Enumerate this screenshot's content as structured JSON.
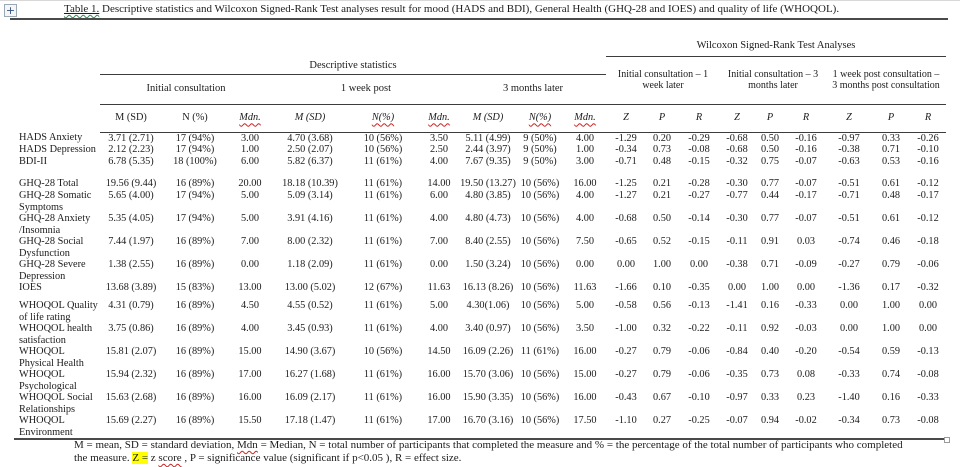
{
  "caption": {
    "number": "Table 1.",
    "text": " Descriptive statistics and Wilcoxon Signed-Rank Test analyses result for mood (HADS and BDI), General Health (GHQ-28 and IOES) and quality of life (WHOQOL)."
  },
  "icons": {
    "table_move_glyph": "+",
    "table_move_name": "four-arrow move handle",
    "resize_handle_name": "table resize square"
  },
  "colors": {
    "highlight": "#ffff00",
    "misspelling_underline": "#cc2222",
    "grammar_underline": "#2e8b57",
    "rule": "#4a4a4a"
  },
  "table": {
    "section_headers": {
      "descriptive": "Descriptive statistics",
      "wilcoxon": "Wilcoxon Signed-Rank Test Analyses"
    },
    "time_headers": [
      "Initial consultation",
      "1 week post",
      "3 months later"
    ],
    "comparison_headers": [
      "Initial consultation – 1\nweek later",
      "Initial consultation – 3\nmonths later",
      "1 week post consultation –\n3 months post consultation"
    ],
    "col_headers": [
      "M (SD)",
      "N (%)",
      "Mdn.",
      "M (SD)",
      "N(%)",
      "Mdn.",
      "M (SD)",
      "N(%)",
      "Mdn.",
      "Z",
      "P",
      "R",
      "Z",
      "P",
      "R",
      "Z",
      "P",
      "R"
    ],
    "groups": [
      {
        "rows": [
          {
            "label": "HADS Anxiety",
            "cells": [
              "3.71 (2.71)",
              "17 (94%)",
              "3.00",
              "4.70 (3.68)",
              "10 (56%)",
              "3.50",
              "5.11 (4.99)",
              "9 (50%)",
              "4.00",
              "-1.29",
              "0.20",
              "-0.29",
              "-0.68",
              "0.50",
              "-0.16",
              "-0.97",
              "0.33",
              "-0.26"
            ]
          },
          {
            "label": "HADS Depression",
            "cells": [
              "2.12 (2.23)",
              "17 (94%)",
              "1.00",
              "2.50 (2.07)",
              "10 (56%)",
              "2.50",
              "2.44 (3.97)",
              "9 (50%)",
              "1.00",
              "-0.34",
              "0.73",
              "-0.08",
              "-0.68",
              "0.50",
              "-0.16",
              "-0.38",
              "0.71",
              "-0.10"
            ]
          },
          {
            "label": "BDI-II",
            "cells": [
              "6.78 (5.35)",
              "18 (100%)",
              "6.00",
              "5.82 (6.37)",
              "11 (61%)",
              "4.00",
              "7.67 (9.35)",
              "9 (50%)",
              "3.00",
              "-0.71",
              "0.48",
              "-0.15",
              "-0.32",
              "0.75",
              "-0.07",
              "-0.63",
              "0.53",
              "-0.16"
            ]
          }
        ]
      },
      {
        "rows": [
          {
            "label": "GHQ-28 Total",
            "cells": [
              "19.56 (9.44)",
              "16 (89%)",
              "20.00",
              "18.18 (10.39)",
              "11 (61%)",
              "14.00",
              "19.50 (13.27)",
              "10 (56%)",
              "16.00",
              "-1.25",
              "0.21",
              "-0.28",
              "-0.30",
              "0.77",
              "-0.07",
              "-0.51",
              "0.61",
              "-0.12"
            ]
          },
          {
            "label": "GHQ-28 Somatic\nSymptoms",
            "cells": [
              "5.65 (4.00)",
              "17 (94%)",
              "5.00",
              "5.09 (3.14)",
              "11 (61%)",
              "6.00",
              "4.80 (3.85)",
              "10 (56%)",
              "4.00",
              "-1.27",
              "0.21",
              "-0.27",
              "-0.77",
              "0.44",
              "-0.17",
              "-0.71",
              "0.48",
              "-0.17"
            ]
          },
          {
            "label": "GHQ-28 Anxiety\n/Insomnia",
            "cells": [
              "5.35 (4.05)",
              "17 (94%)",
              "5.00",
              "3.91 (4.16)",
              "11 (61%)",
              "4.00",
              "4.80 (4.73)",
              "10 (56%)",
              "4.00",
              "-0.68",
              "0.50",
              "-0.14",
              "-0.30",
              "0.77",
              "-0.07",
              "-0.51",
              "0.61",
              "-0.12"
            ]
          },
          {
            "label": "GHQ-28 Social\nDysfunction",
            "cells": [
              "7.44 (1.97)",
              "16 (89%)",
              "7.00",
              "8.00 (2.32)",
              "11 (61%)",
              "7.00",
              "8.40 (2.55)",
              "10 (56%)",
              "7.50",
              "-0.65",
              "0.52",
              "-0.15",
              "-0.11",
              "0.91",
              "0.03",
              "-0.74",
              "0.46",
              "-0.18"
            ]
          },
          {
            "label": "GHQ-28 Severe\nDepression",
            "cells": [
              "1.38 (2.55)",
              "16 (89%)",
              "0.00",
              "1.18 (2.09)",
              "11 (61%)",
              "0.00",
              "1.50 (3.24)",
              "10 (56%)",
              "0.00",
              "0.00",
              "1.00",
              "0.00",
              "-0.38",
              "0.71",
              "-0.09",
              "-0.27",
              "0.79",
              "-0.06"
            ]
          },
          {
            "label": "IOES",
            "cells": [
              "13.68 (3.89)",
              "15 (83%)",
              "13.00",
              "13.00 (5.02)",
              "12 (67%)",
              "11.63",
              "16.13 (8.26)",
              "10 (56%)",
              "11.63",
              "-1.66",
              "0.10",
              "-0.35",
              "0.00",
              "1.00",
              "0.00",
              "-1.36",
              "0.17",
              "-0.32"
            ]
          }
        ]
      },
      {
        "rows": [
          {
            "label": "WHOQOL Quality\nof life rating",
            "cells": [
              "4.31 (0.79)",
              "16 (89%)",
              "4.50",
              "4.55 (0.52)",
              "11 (61%)",
              "5.00",
              "4.30(1.06)",
              "10 (56%)",
              "5.00",
              "-0.58",
              "0.56",
              "-0.13",
              "-1.41",
              "0.16",
              "-0.33",
              "0.00",
              "1.00",
              "0.00"
            ]
          },
          {
            "label": "WHOQOL health\nsatisfaction",
            "cells": [
              "3.75 (0.86)",
              "16 (89%)",
              "4.00",
              "3.45 (0.93)",
              "11 (61%)",
              "4.00",
              "3.40 (0.97)",
              "10 (56%)",
              "3.50",
              "-1.00",
              "0.32",
              "-0.22",
              "-0.11",
              "0.92",
              "-0.03",
              "0.00",
              "1.00",
              "0.00"
            ]
          },
          {
            "label": "WHOQOL\nPhysical Health",
            "cells": [
              "15.81 (2.07)",
              "16 (89%)",
              "15.00",
              "14.90 (3.67)",
              "10 (56%)",
              "14.50",
              "16.09 (2.26)",
              "11 (61%)",
              "16.00",
              "-0.27",
              "0.79",
              "-0.06",
              "-0.84",
              "0.40",
              "-0.20",
              "-0.54",
              "0.59",
              "-0.13"
            ]
          },
          {
            "label": "WHOQOL\nPsychological",
            "cells": [
              "15.94 (2.32)",
              "16 (89%)",
              "17.00",
              "16.27 (1.68)",
              "11 (61%)",
              "16.00",
              "15.70 (3.06)",
              "10 (56%)",
              "15.00",
              "-0.27",
              "0.79",
              "-0.06",
              "-0.35",
              "0.73",
              "0.08",
              "-0.33",
              "0.74",
              "-0.08"
            ]
          },
          {
            "label": "WHOQOL Social\nRelationships",
            "cells": [
              "15.63 (2.68)",
              "16 (89%)",
              "16.00",
              "16.09 (2.17)",
              "11 (61%)",
              "16.00",
              "15.90 (3.35)",
              "10 (56%)",
              "16.00",
              "-0.43",
              "0.67",
              "-0.10",
              "-0.97",
              "0.33",
              "0.23",
              "-1.40",
              "0.16",
              "-0.33"
            ]
          },
          {
            "label": "WHOQOL\nEnvironment",
            "cells": [
              "15.69 (2.27)",
              "16 (89%)",
              "15.50",
              "17.18 (1.47)",
              "11 (61%)",
              "17.00",
              "16.70 (3.16)",
              "10 (56%)",
              "17.50",
              "-1.10",
              "0.27",
              "-0.25",
              "-0.07",
              "0.94",
              "-0.02",
              "-0.34",
              "0.73",
              "-0.08"
            ]
          }
        ]
      }
    ]
  },
  "footnote": {
    "segments": [
      {
        "text": "M = mean, SD = standard deviation, "
      },
      {
        "text": "Mdn",
        "style": "wavy"
      },
      {
        "text": " = Median, N = total number of participants that completed the measure and % = the percentage of the total number of participants who completed the measure. "
      },
      {
        "text": "Z =",
        "style": "highlight"
      },
      {
        "text": " z "
      },
      {
        "text": "score",
        "style": "wavy"
      },
      {
        "text": " , P = significance value (significant if p<0.05 ), R = effect size."
      }
    ]
  }
}
